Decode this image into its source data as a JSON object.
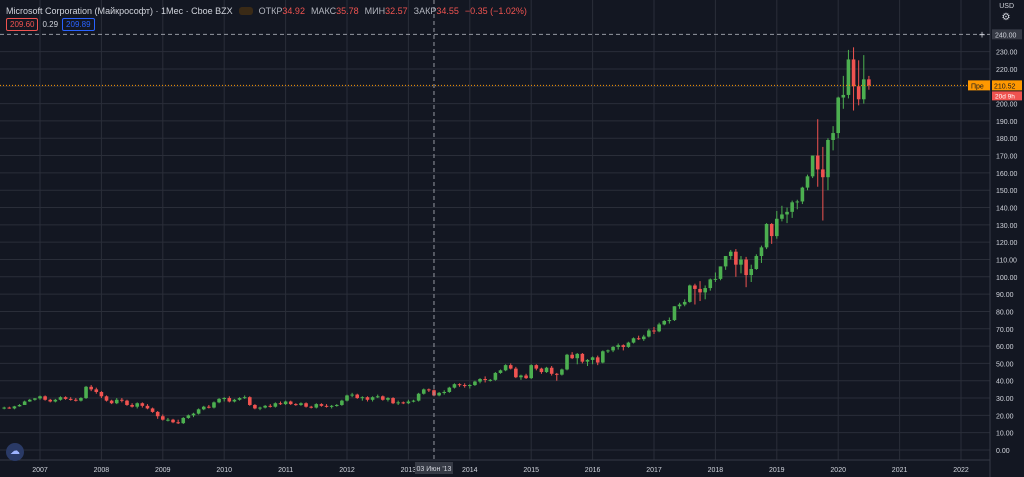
{
  "header": {
    "symbol_title": "Microsoft Corporation (Майкрософт) · 1Мес · Cboe BZX",
    "ohlc": [
      {
        "label": "ОТКР",
        "value": "34.92"
      },
      {
        "label": "МАКС",
        "value": "35.78"
      },
      {
        "label": "МИН",
        "value": "32.57"
      },
      {
        "label": "ЗАКР",
        "value": "34.55"
      },
      {
        "label": "",
        "value": "−0.35 (−1.02%)"
      }
    ],
    "pills": {
      "bid": "209.60",
      "spread": "0.29",
      "ask": "209.89"
    },
    "currency": "USD"
  },
  "crosshair": {
    "price_label": "240.00",
    "date_label": "03 Июн '13"
  },
  "last_price": {
    "label": "Пре",
    "value": "210.52",
    "countdown": "20d 9h"
  },
  "colors": {
    "background": "#131722",
    "up": "#26a69a",
    "up_candle": "#4caf50",
    "down": "#ef5350",
    "grid": "#2a2e39",
    "crosshair": "#9598a1",
    "last_price_line": "#ff9800"
  },
  "chart_data": {
    "type": "candlestick",
    "interval": "1 month",
    "ylim": [
      0,
      250
    ],
    "y_ticks": [
      "0.00",
      "10.00",
      "20.00",
      "30.00",
      "40.00",
      "50.00",
      "60.00",
      "70.00",
      "80.00",
      "90.00",
      "100.00",
      "110.00",
      "120.00",
      "130.00",
      "140.00",
      "150.00",
      "160.00",
      "170.00",
      "180.00",
      "190.00",
      "200.00",
      "210.00",
      "220.00",
      "230.00"
    ],
    "x_ticks": [
      "2007",
      "2008",
      "2009",
      "2010",
      "2011",
      "2012",
      "2013",
      "2014",
      "2015",
      "2016",
      "2017",
      "2018",
      "2019",
      "2020",
      "2021",
      "2022"
    ],
    "start": "2006-06",
    "candles": [
      [
        24.0,
        25.0,
        23.5,
        24.5
      ],
      [
        24.5,
        25.0,
        23.8,
        24.0
      ],
      [
        24.0,
        25.5,
        23.5,
        25.2
      ],
      [
        25.2,
        26.5,
        25.0,
        26.0
      ],
      [
        26.0,
        28.5,
        26.0,
        28.0
      ],
      [
        28.0,
        29.5,
        27.8,
        29.0
      ],
      [
        29.0,
        30.0,
        28.5,
        29.8
      ],
      [
        29.8,
        31.5,
        29.0,
        31.0
      ],
      [
        31.0,
        31.5,
        28.5,
        29.0
      ],
      [
        29.0,
        29.5,
        27.5,
        28.0
      ],
      [
        28.0,
        29.5,
        27.5,
        29.0
      ],
      [
        29.0,
        31.0,
        28.5,
        30.5
      ],
      [
        30.5,
        31.0,
        29.0,
        29.5
      ],
      [
        29.5,
        30.5,
        28.5,
        29.0
      ],
      [
        29.0,
        30.0,
        28.0,
        28.5
      ],
      [
        28.5,
        30.5,
        28.0,
        30.0
      ],
      [
        30.0,
        37.0,
        29.5,
        36.5
      ],
      [
        36.5,
        37.5,
        34.0,
        35.0
      ],
      [
        35.0,
        36.0,
        32.5,
        33.5
      ],
      [
        33.5,
        34.0,
        30.0,
        31.0
      ],
      [
        31.0,
        31.5,
        28.0,
        28.5
      ],
      [
        28.5,
        29.0,
        26.5,
        27.0
      ],
      [
        27.0,
        30.0,
        26.5,
        29.0
      ],
      [
        29.0,
        30.0,
        27.5,
        28.5
      ],
      [
        28.5,
        29.0,
        25.5,
        26.0
      ],
      [
        26.0,
        27.0,
        24.5,
        25.0
      ],
      [
        25.0,
        27.5,
        24.0,
        27.0
      ],
      [
        27.0,
        27.5,
        24.5,
        25.5
      ],
      [
        25.5,
        26.5,
        23.5,
        24.0
      ],
      [
        24.0,
        24.5,
        21.5,
        22.0
      ],
      [
        22.0,
        22.5,
        18.0,
        19.5
      ],
      [
        19.5,
        20.5,
        17.0,
        17.5
      ],
      [
        17.5,
        18.5,
        16.5,
        17.5
      ],
      [
        17.5,
        18.0,
        15.5,
        16.0
      ],
      [
        16.0,
        17.5,
        15.0,
        15.5
      ],
      [
        15.5,
        19.0,
        15.0,
        18.5
      ],
      [
        18.5,
        20.5,
        18.0,
        20.0
      ],
      [
        20.0,
        21.5,
        19.0,
        21.0
      ],
      [
        21.0,
        24.0,
        20.5,
        23.5
      ],
      [
        23.5,
        25.5,
        23.0,
        25.0
      ],
      [
        25.0,
        26.0,
        24.0,
        24.5
      ],
      [
        24.5,
        28.0,
        24.0,
        27.5
      ],
      [
        27.5,
        30.0,
        27.0,
        29.5
      ],
      [
        29.5,
        30.5,
        28.0,
        30.0
      ],
      [
        30.0,
        31.0,
        27.5,
        28.0
      ],
      [
        28.0,
        29.5,
        27.5,
        29.0
      ],
      [
        29.0,
        30.5,
        28.5,
        30.0
      ],
      [
        30.0,
        31.5,
        29.5,
        30.5
      ],
      [
        30.5,
        31.0,
        25.5,
        26.0
      ],
      [
        26.0,
        26.5,
        23.5,
        24.0
      ],
      [
        24.0,
        25.0,
        23.0,
        24.5
      ],
      [
        24.5,
        26.0,
        24.0,
        25.5
      ],
      [
        25.5,
        26.5,
        24.5,
        25.0
      ],
      [
        25.0,
        27.5,
        24.5,
        27.0
      ],
      [
        27.0,
        28.0,
        26.0,
        26.5
      ],
      [
        26.5,
        28.5,
        26.0,
        28.0
      ],
      [
        28.0,
        28.5,
        26.0,
        26.5
      ],
      [
        26.5,
        27.0,
        25.5,
        26.0
      ],
      [
        26.0,
        27.5,
        25.5,
        27.0
      ],
      [
        27.0,
        27.5,
        24.5,
        25.0
      ],
      [
        25.0,
        25.5,
        24.0,
        24.5
      ],
      [
        24.5,
        27.0,
        24.0,
        26.5
      ],
      [
        26.5,
        27.0,
        25.0,
        25.5
      ],
      [
        25.5,
        26.5,
        24.5,
        25.0
      ],
      [
        25.0,
        26.0,
        24.0,
        25.5
      ],
      [
        25.5,
        26.5,
        25.0,
        26.0
      ],
      [
        26.0,
        29.0,
        25.5,
        28.5
      ],
      [
        28.5,
        32.0,
        28.0,
        31.5
      ],
      [
        31.5,
        33.0,
        30.5,
        32.0
      ],
      [
        32.0,
        32.5,
        29.5,
        30.0
      ],
      [
        30.0,
        31.0,
        28.5,
        30.5
      ],
      [
        30.5,
        31.0,
        28.0,
        29.0
      ],
      [
        29.0,
        31.0,
        28.0,
        30.5
      ],
      [
        30.5,
        32.0,
        30.0,
        31.0
      ],
      [
        31.0,
        31.5,
        28.5,
        29.0
      ],
      [
        29.0,
        30.5,
        28.0,
        30.0
      ],
      [
        30.0,
        30.5,
        26.5,
        27.0
      ],
      [
        27.0,
        28.5,
        26.0,
        27.5
      ],
      [
        27.5,
        28.0,
        26.5,
        27.0
      ],
      [
        27.0,
        29.0,
        26.5,
        28.0
      ],
      [
        28.0,
        29.0,
        27.5,
        28.5
      ],
      [
        28.5,
        33.0,
        28.0,
        32.5
      ],
      [
        32.5,
        35.5,
        32.0,
        35.0
      ],
      [
        35.0,
        35.5,
        33.5,
        34.5
      ],
      [
        34.5,
        35.0,
        31.0,
        31.5
      ],
      [
        31.5,
        33.5,
        31.0,
        33.0
      ],
      [
        33.0,
        34.5,
        32.0,
        33.5
      ],
      [
        33.5,
        36.5,
        33.0,
        36.0
      ],
      [
        36.0,
        38.5,
        35.5,
        38.0
      ],
      [
        38.0,
        38.5,
        36.5,
        37.5
      ],
      [
        37.5,
        38.5,
        36.0,
        37.0
      ],
      [
        37.0,
        38.0,
        35.5,
        37.5
      ],
      [
        37.5,
        40.0,
        37.0,
        39.5
      ],
      [
        39.5,
        41.5,
        38.5,
        41.0
      ],
      [
        41.0,
        42.5,
        39.0,
        40.5
      ],
      [
        40.5,
        41.0,
        39.5,
        40.5
      ],
      [
        40.5,
        45.0,
        40.0,
        44.5
      ],
      [
        44.5,
        46.5,
        44.0,
        46.0
      ],
      [
        46.0,
        49.5,
        45.5,
        49.0
      ],
      [
        49.0,
        50.0,
        46.5,
        47.0
      ],
      [
        47.0,
        48.0,
        41.5,
        42.0
      ],
      [
        42.0,
        43.5,
        40.5,
        43.0
      ],
      [
        43.0,
        44.0,
        41.0,
        41.5
      ],
      [
        41.5,
        49.5,
        41.0,
        49.0
      ],
      [
        49.0,
        49.5,
        46.0,
        47.0
      ],
      [
        47.0,
        47.5,
        44.0,
        45.0
      ],
      [
        45.0,
        48.0,
        44.5,
        47.5
      ],
      [
        47.5,
        48.5,
        43.0,
        44.0
      ],
      [
        44.0,
        44.5,
        40.0,
        43.5
      ],
      [
        43.5,
        47.0,
        43.0,
        46.5
      ],
      [
        46.5,
        55.5,
        46.0,
        55.0
      ],
      [
        55.0,
        56.5,
        52.5,
        53.0
      ],
      [
        53.0,
        56.0,
        49.5,
        55.5
      ],
      [
        55.5,
        56.0,
        50.0,
        51.0
      ],
      [
        51.0,
        52.5,
        48.5,
        52.0
      ],
      [
        52.0,
        54.0,
        49.5,
        53.5
      ],
      [
        53.5,
        54.5,
        49.0,
        50.5
      ],
      [
        50.5,
        57.5,
        50.0,
        57.0
      ],
      [
        57.0,
        58.0,
        56.0,
        57.5
      ],
      [
        57.5,
        60.0,
        56.5,
        59.5
      ],
      [
        59.5,
        61.5,
        58.0,
        60.5
      ],
      [
        60.5,
        61.0,
        57.5,
        59.5
      ],
      [
        59.5,
        62.5,
        59.0,
        62.0
      ],
      [
        62.0,
        65.0,
        61.5,
        64.5
      ],
      [
        64.5,
        66.0,
        63.5,
        64.0
      ],
      [
        64.0,
        66.5,
        63.0,
        65.5
      ],
      [
        65.5,
        70.0,
        65.0,
        69.0
      ],
      [
        69.0,
        71.0,
        67.0,
        68.5
      ],
      [
        68.5,
        73.5,
        68.0,
        72.5
      ],
      [
        72.5,
        75.0,
        72.0,
        74.5
      ],
      [
        74.5,
        76.5,
        73.0,
        75.0
      ],
      [
        75.0,
        83.0,
        74.5,
        83.0
      ],
      [
        83.0,
        85.0,
        81.5,
        84.0
      ],
      [
        84.0,
        87.0,
        83.0,
        85.5
      ],
      [
        85.5,
        95.5,
        85.0,
        95.0
      ],
      [
        95.0,
        96.0,
        84.0,
        93.0
      ],
      [
        93.0,
        97.5,
        86.0,
        91.0
      ],
      [
        91.0,
        95.0,
        87.0,
        93.5
      ],
      [
        93.5,
        99.0,
        92.0,
        98.5
      ],
      [
        98.5,
        102.5,
        97.0,
        98.8
      ],
      [
        98.8,
        106.0,
        98.0,
        106.0
      ],
      [
        106.0,
        112.0,
        104.0,
        112.0
      ],
      [
        112.0,
        115.5,
        110.0,
        114.5
      ],
      [
        114.5,
        116.0,
        100.0,
        107.0
      ],
      [
        107.0,
        112.0,
        102.0,
        110.0
      ],
      [
        110.0,
        111.5,
        94.0,
        101.0
      ],
      [
        101.0,
        107.0,
        97.0,
        104.5
      ],
      [
        104.5,
        113.0,
        104.0,
        112.0
      ],
      [
        112.0,
        118.0,
        108.0,
        117.0
      ],
      [
        117.0,
        131.0,
        116.0,
        130.5
      ],
      [
        130.5,
        131.0,
        119.0,
        123.5
      ],
      [
        123.5,
        138.0,
        122.0,
        133.5
      ],
      [
        133.5,
        141.0,
        132.0,
        136.0
      ],
      [
        136.0,
        140.0,
        131.0,
        137.5
      ],
      [
        137.5,
        144.0,
        134.0,
        143.0
      ],
      [
        143.0,
        144.5,
        139.0,
        143.5
      ],
      [
        143.5,
        152.0,
        142.0,
        151.5
      ],
      [
        151.5,
        159.0,
        150.0,
        158.0
      ],
      [
        158.0,
        170.0,
        157.0,
        170.0
      ],
      [
        170.0,
        191.0,
        152.0,
        162.0
      ],
      [
        162.0,
        175.0,
        132.5,
        157.5
      ],
      [
        157.5,
        180.0,
        150.0,
        179.0
      ],
      [
        179.0,
        187.0,
        173.0,
        183.0
      ],
      [
        183.0,
        204.0,
        180.0,
        203.5
      ],
      [
        203.5,
        216.0,
        197.0,
        205.0
      ],
      [
        205.0,
        231.0,
        203.0,
        225.5
      ],
      [
        225.5,
        232.5,
        196.0,
        210.0
      ],
      [
        210.0,
        225.0,
        199.0,
        202.5
      ],
      [
        202.5,
        228.0,
        200.0,
        214.0
      ],
      [
        214.0,
        216.0,
        208.0,
        210.5
      ]
    ]
  }
}
